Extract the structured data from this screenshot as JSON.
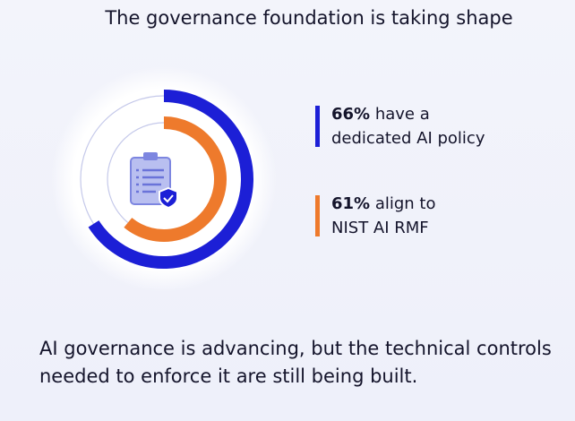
{
  "chart_data": {
    "type": "radial-bar",
    "title": "The governance foundation is taking shape",
    "ylim": [
      0,
      100
    ],
    "series": [
      {
        "name": "have a dedicated AI policy",
        "color": "#1c1fd6",
        "values": [
          66
        ],
        "value_labels": [
          "66%"
        ]
      },
      {
        "name": "align to NIST AI RMF",
        "color": "#ee7a2c",
        "values": [
          61
        ],
        "value_labels": [
          "61%"
        ]
      }
    ],
    "caption": "AI governance is advancing, but the technical controls needed to enforce it are still being built."
  }
}
